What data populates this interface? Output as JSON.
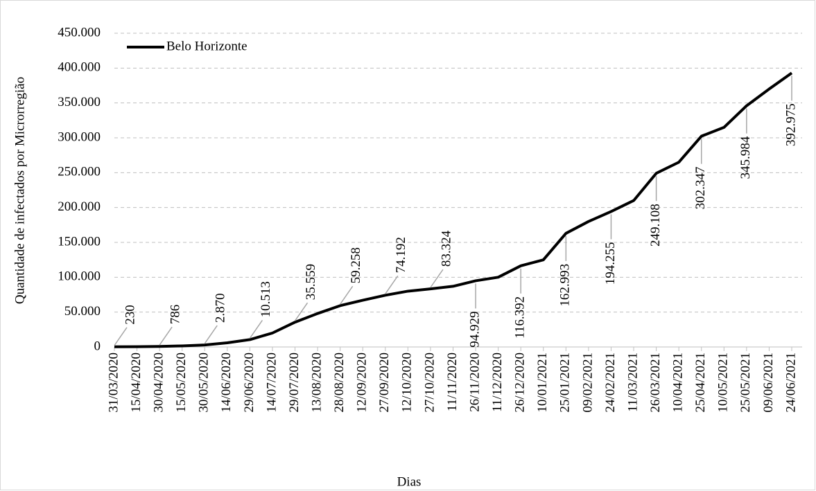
{
  "chart_data": {
    "type": "line",
    "x_label": "Dias",
    "y_label": "Quantidade de infectados por Microrregião",
    "categories": [
      "31/03/2020",
      "15/04/2020",
      "30/04/2020",
      "15/05/2020",
      "30/05/2020",
      "14/06/2020",
      "29/06/2020",
      "14/07/2020",
      "29/07/2020",
      "13/08/2020",
      "28/08/2020",
      "12/09/2020",
      "27/09/2020",
      "12/10/2020",
      "27/10/2020",
      "11/11/2020",
      "26/11/2020",
      "11/12/2020",
      "26/12/2020",
      "10/01/2021",
      "25/01/2021",
      "09/02/2021",
      "24/02/2021",
      "11/03/2021",
      "26/03/2021",
      "10/04/2021",
      "25/04/2021",
      "10/05/2021",
      "25/05/2021",
      "09/06/2021",
      "24/06/2021"
    ],
    "series": [
      {
        "name": "Belo Horizonte",
        "color": "#000000",
        "values": [
          230,
          400,
          786,
          1500,
          2870,
          6000,
          10513,
          20000,
          35559,
          48000,
          59258,
          67000,
          74192,
          80000,
          83324,
          87000,
          94929,
          100000,
          116392,
          125000,
          162993,
          180000,
          194255,
          210000,
          249108,
          265000,
          302347,
          315000,
          345984,
          370000,
          392975
        ],
        "value_labels": [
          "230",
          null,
          "786",
          null,
          "2.870",
          null,
          "10.513",
          null,
          "35.559",
          null,
          "59.258",
          null,
          "74.192",
          null,
          "83.324",
          null,
          "94.929",
          null,
          "116.392",
          null,
          "162.993",
          null,
          "194.255",
          null,
          "249.108",
          null,
          "302.347",
          null,
          "345.984",
          null,
          "392.975"
        ]
      }
    ],
    "ylim": [
      0,
      450000
    ],
    "yticks": [
      0,
      {
        "value": 50000,
        "label": "50.000"
      },
      {
        "value": 100000,
        "label": "100.000"
      },
      {
        "value": 150000,
        "label": "150.000"
      },
      {
        "value": 200000,
        "label": "200.000"
      },
      {
        "value": 250000,
        "label": "250.000"
      },
      {
        "value": 300000,
        "label": "300.000"
      },
      {
        "value": 350000,
        "label": "350.000"
      },
      {
        "value": 400000,
        "label": "400.000"
      },
      {
        "value": 450000,
        "label": "450.000"
      }
    ],
    "grid": true,
    "legend": "top-left"
  }
}
